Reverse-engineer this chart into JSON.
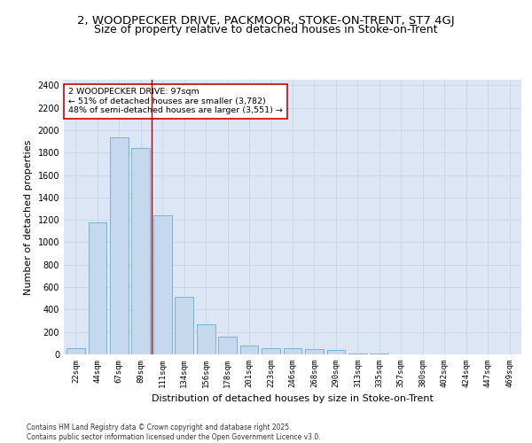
{
  "title": "2, WOODPECKER DRIVE, PACKMOOR, STOKE-ON-TRENT, ST7 4GJ",
  "subtitle": "Size of property relative to detached houses in Stoke-on-Trent",
  "xlabel": "Distribution of detached houses by size in Stoke-on-Trent",
  "ylabel": "Number of detached properties",
  "categories": [
    "22sqm",
    "44sqm",
    "67sqm",
    "89sqm",
    "111sqm",
    "134sqm",
    "156sqm",
    "178sqm",
    "201sqm",
    "223sqm",
    "246sqm",
    "268sqm",
    "290sqm",
    "313sqm",
    "335sqm",
    "357sqm",
    "380sqm",
    "402sqm",
    "424sqm",
    "447sqm",
    "469sqm"
  ],
  "values": [
    55,
    1180,
    1940,
    1840,
    1240,
    510,
    265,
    160,
    80,
    55,
    55,
    50,
    40,
    10,
    5,
    2,
    2,
    2,
    1,
    1,
    1
  ],
  "bar_color": "#c5d8ec",
  "bar_edge_color": "#6aaad4",
  "red_line_x": 3.5,
  "annotation_text": "2 WOODPECKER DRIVE: 97sqm\n← 51% of detached houses are smaller (3,782)\n48% of semi-detached houses are larger (3,551) →",
  "annotation_box_color": "#ffffff",
  "annotation_box_edge": "#cc0000",
  "grid_color": "#c8d4e8",
  "bg_color": "#dce6f5",
  "footer_line1": "Contains HM Land Registry data © Crown copyright and database right 2025.",
  "footer_line2": "Contains public sector information licensed under the Open Government Licence v3.0.",
  "ylim": [
    0,
    2450
  ],
  "yticks": [
    0,
    200,
    400,
    600,
    800,
    1000,
    1200,
    1400,
    1600,
    1800,
    2000,
    2200,
    2400
  ],
  "title_fontsize": 9.5,
  "tick_fontsize": 6.5,
  "ylabel_fontsize": 8,
  "xlabel_fontsize": 8,
  "footer_fontsize": 5.5
}
